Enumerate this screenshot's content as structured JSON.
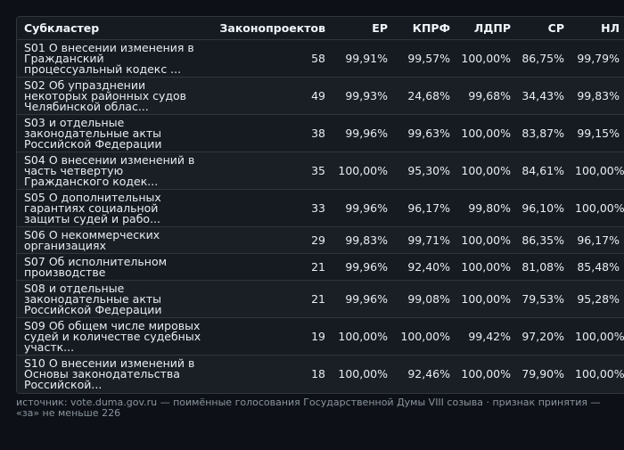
{
  "table": {
    "headers": [
      "Субкластер",
      "Законопроектов",
      "ЕР",
      "КПРФ",
      "ЛДПР",
      "СР",
      "НЛ"
    ],
    "rows": [
      {
        "name": "S01 О внесении изменения в Гражданский процессуальный кодекс ...",
        "count": "58",
        "er": "99,91%",
        "kprf": "99,57%",
        "ldpr": "100,00%",
        "sr": "86,75%",
        "nl": "99,79%"
      },
      {
        "name": "S02 Об упразднении некоторых районных судов Челябинской облас...",
        "count": "49",
        "er": "99,93%",
        "kprf": "24,68%",
        "ldpr": "99,68%",
        "sr": "34,43%",
        "nl": "99,83%"
      },
      {
        "name": "S03 и отдельные законодательные акты Российской Федерации",
        "count": "38",
        "er": "99,96%",
        "kprf": "99,63%",
        "ldpr": "100,00%",
        "sr": "83,87%",
        "nl": "99,15%"
      },
      {
        "name": "S04 О внесении изменений в часть четвертую Гражданского кодек...",
        "count": "35",
        "er": "100,00%",
        "kprf": "95,30%",
        "ldpr": "100,00%",
        "sr": "84,61%",
        "nl": "100,00%"
      },
      {
        "name": "S05 О дополнительных гарантиях социальной защиты судей и рабо...",
        "count": "33",
        "er": "99,96%",
        "kprf": "96,17%",
        "ldpr": "99,80%",
        "sr": "96,10%",
        "nl": "100,00%"
      },
      {
        "name": "S06 О некоммерческих организациях",
        "count": "29",
        "er": "99,83%",
        "kprf": "99,71%",
        "ldpr": "100,00%",
        "sr": "86,35%",
        "nl": "96,17%"
      },
      {
        "name": "S07 Об исполнительном производстве",
        "count": "21",
        "er": "99,96%",
        "kprf": "92,40%",
        "ldpr": "100,00%",
        "sr": "81,08%",
        "nl": "85,48%"
      },
      {
        "name": "S08 и отдельные законодательные акты Российской Федерации",
        "count": "21",
        "er": "99,96%",
        "kprf": "99,08%",
        "ldpr": "100,00%",
        "sr": "79,53%",
        "nl": "95,28%"
      },
      {
        "name": "S09 Об общем числе мировых судей и количестве судебных участк...",
        "count": "19",
        "er": "100,00%",
        "kprf": "100,00%",
        "ldpr": "99,42%",
        "sr": "97,20%",
        "nl": "100,00%"
      },
      {
        "name": "S10 О внесении изменений в Основы законодательства Российской...",
        "count": "18",
        "er": "100,00%",
        "kprf": "92,46%",
        "ldpr": "100,00%",
        "sr": "79,90%",
        "nl": "100,00%"
      }
    ]
  },
  "source": "источник: vote.duma.gov.ru — поимённые голосования Государственной Думы VIII созыва · признак принятия — «за» не меньше 226"
}
